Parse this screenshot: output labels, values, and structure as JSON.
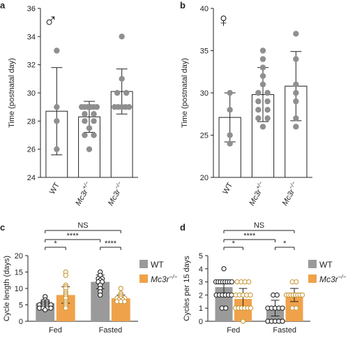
{
  "figure": {
    "colors": {
      "wt": "#9a9a9a",
      "mc3r": "#f0a24a",
      "ink": "#222222",
      "dot_grey": "#8f8f8f",
      "dot_orange": "#c9993a"
    }
  },
  "chart_data": [
    {
      "panel": "a",
      "symbol": "♂",
      "type": "bar",
      "ylabel": "Time (postnatal day)",
      "ylim": [
        24,
        36
      ],
      "yticks": [
        24,
        26,
        28,
        30,
        32,
        34,
        36
      ],
      "categories": [
        "WT",
        "Mc3r+/−",
        "Mc3r−/−"
      ],
      "category_labels": [
        {
          "base": "WT",
          "sup": ""
        },
        {
          "base": "Mc3r",
          "sup": "+/−"
        },
        {
          "base": "Mc3r",
          "sup": "−/−"
        }
      ],
      "values": [
        28.7,
        28.3,
        30.1
      ],
      "errors": [
        3.1,
        1.1,
        1.6
      ],
      "points": [
        [
          33.0,
          29.0,
          28.0,
          26.0
        ],
        [
          29.0,
          29.0,
          29.0,
          29.0,
          29.0,
          29.0,
          28.5,
          28.5,
          28.0,
          28.0,
          27.5,
          27.0,
          27.0,
          26.0
        ],
        [
          34.0,
          31.0,
          30.0,
          30.0,
          29.0,
          29.0,
          29.0,
          29.0,
          29.0
        ]
      ]
    },
    {
      "panel": "b",
      "symbol": "♀",
      "type": "bar",
      "ylabel": "Time (postnatal day)",
      "ylim": [
        20,
        40
      ],
      "yticks": [
        20,
        25,
        30,
        35,
        40
      ],
      "categories": [
        "WT",
        "Mc3r+/−",
        "Mc3r−/−"
      ],
      "category_labels": [
        {
          "base": "WT",
          "sup": ""
        },
        {
          "base": "Mc3r",
          "sup": "+/−"
        },
        {
          "base": "Mc3r",
          "sup": "−/−"
        }
      ],
      "values": [
        27.1,
        29.8,
        30.8
      ],
      "errors": [
        2.9,
        3.2,
        4.1
      ],
      "points": [
        [
          30.0,
          28.0,
          25.0,
          24.0
        ],
        [
          35.0,
          34.0,
          33.0,
          32.0,
          31.0,
          30.0,
          30.0,
          29.0,
          29.0,
          28.0,
          28.0,
          27.0,
          27.0,
          26.0
        ],
        [
          37.0,
          34.0,
          31.0,
          30.0,
          29.0,
          27.0,
          26.0
        ]
      ]
    },
    {
      "panel": "c",
      "type": "bar",
      "ylabel": "Cycle length (days)",
      "ylim": [
        0,
        20
      ],
      "yticks": [
        0,
        5,
        10,
        15,
        20
      ],
      "categories": [
        "Fed",
        "Fasted"
      ],
      "series": [
        {
          "name": "WT",
          "values": [
            5.5,
            12.0
          ],
          "errors": [
            1.0,
            2.1
          ],
          "points": [
            [
              7.5,
              6.5,
              6.0,
              6.0,
              5.5,
              5.5,
              5.0,
              5.0,
              5.0,
              5.0,
              4.5,
              4.5,
              4.0,
              4.0,
              4.0,
              4.0,
              3.5
            ],
            [
              15.0,
              14.0,
              13.0,
              13.0,
              12.5,
              12.0,
              12.0,
              11.0,
              10.0,
              9.0,
              8.0
            ]
          ]
        },
        {
          "name": "Mc3r−/−",
          "legend": {
            "base": "Mc3r",
            "sup": "−/−"
          },
          "values": [
            8.0,
            7.0
          ],
          "errors": [
            2.5,
            1.0
          ],
          "points": [
            [
              15.0,
              14.0,
              11.0,
              10.5,
              10.0,
              9.0,
              8.5,
              8.0,
              7.5,
              7.0,
              6.0,
              5.5,
              5.0,
              4.5,
              4.0
            ],
            [
              10.0,
              8.5,
              8.0,
              7.5,
              7.0,
              7.0,
              7.0,
              6.5,
              6.5,
              6.0,
              6.0,
              6.0
            ]
          ]
        }
      ],
      "significance": [
        {
          "label": "NS",
          "from": "WT Fed",
          "to": "WT Fasted"
        },
        {
          "label": "*",
          "from": "WT Fed",
          "to": "Mc3r Fed"
        },
        {
          "label": "****",
          "from": "WT Fed",
          "to": "WT Fasted"
        },
        {
          "label": "****",
          "from": "WT Fasted",
          "to": "Mc3r Fasted"
        }
      ]
    },
    {
      "panel": "d",
      "type": "bar",
      "ylabel": "Cycles per 15 days",
      "ylim": [
        0,
        5
      ],
      "yticks": [
        0,
        1,
        2,
        3,
        4,
        5
      ],
      "categories": [
        "Fed",
        "Fasted"
      ],
      "series": [
        {
          "name": "WT",
          "values": [
            2.6,
            1.0
          ],
          "errors": [
            0.5,
            0.6
          ],
          "points": [
            [
              4.0,
              3.0,
              3.0,
              3.0,
              3.0,
              3.0,
              3.0,
              3.0,
              3.0,
              2.0,
              2.0,
              2.0,
              2.0,
              2.0,
              2.0,
              1.0,
              1.0
            ],
            [
              2.0,
              2.0,
              1.0,
              1.0,
              1.0,
              1.0,
              1.0,
              0.0,
              0.0,
              0.0,
              0.0,
              0.0
            ]
          ]
        },
        {
          "name": "Mc3r−/−",
          "legend": {
            "base": "Mc3r",
            "sup": "−/−"
          },
          "values": [
            1.7,
            2.0
          ],
          "errors": [
            0.8,
            0.5
          ],
          "points": [
            [
              3.0,
              3.0,
              3.0,
              3.0,
              2.0,
              2.0,
              2.0,
              2.0,
              2.0,
              1.0,
              1.0,
              1.0,
              1.0,
              1.0,
              1.0,
              0.0
            ],
            [
              3.0,
              3.0,
              2.0,
              2.0,
              2.0,
              2.0,
              2.0,
              2.0,
              2.0,
              2.0,
              1.0,
              1.0
            ]
          ]
        }
      ],
      "significance": [
        {
          "label": "NS",
          "from": "WT Fed",
          "to": "WT Fasted"
        },
        {
          "label": "*",
          "from": "WT Fed",
          "to": "Mc3r Fed"
        },
        {
          "label": "****",
          "from": "WT Fed",
          "to": "WT Fasted"
        },
        {
          "label": "*",
          "from": "WT Fasted",
          "to": "Mc3r Fasted"
        }
      ]
    }
  ]
}
